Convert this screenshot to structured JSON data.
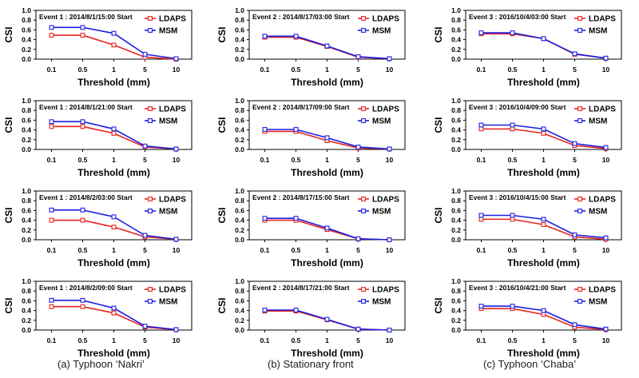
{
  "colors": {
    "ldaps": "#e8231d",
    "msm": "#1c1ee0",
    "axis": "#000000"
  },
  "legend_labels": {
    "ldaps": "LDAPS",
    "msm": "MSM"
  },
  "captions": [
    "(a) Typhoon ‘Nakri’",
    "(b) Stationary front",
    "(c) Typhoon ‘Chaba’"
  ],
  "chart_data": [
    {
      "type": "line",
      "title": "Event 1 : 2014/8/1/15:00  Start",
      "xlabel": "Threshold (mm)",
      "ylabel": "CSI",
      "categories": [
        "0.1",
        "0.5",
        "1",
        "5",
        "10"
      ],
      "yticks": [
        "0.0",
        "0.2",
        "0.4",
        "0.6",
        "0.8",
        "1.0"
      ],
      "ylim": [
        0,
        1
      ],
      "series": [
        {
          "name": "LDAPS",
          "values": [
            0.49,
            0.49,
            0.29,
            0.04,
            0.0
          ]
        },
        {
          "name": "MSM",
          "values": [
            0.65,
            0.65,
            0.53,
            0.1,
            0.01
          ]
        }
      ]
    },
    {
      "type": "line",
      "title": "Event 2 : 2014/8/17/03:00  Start",
      "xlabel": "Threshold (mm)",
      "ylabel": "CSI",
      "categories": [
        "0.1",
        "0.5",
        "1",
        "5",
        "10"
      ],
      "yticks": [
        "0.0",
        "0.2",
        "0.4",
        "0.6",
        "0.8",
        "1.0"
      ],
      "ylim": [
        0,
        1
      ],
      "series": [
        {
          "name": "LDAPS",
          "values": [
            0.45,
            0.45,
            0.26,
            0.04,
            0.01
          ]
        },
        {
          "name": "MSM",
          "values": [
            0.47,
            0.47,
            0.27,
            0.05,
            0.01
          ]
        }
      ]
    },
    {
      "type": "line",
      "title": "Event 3 : 2016/10/4/03:00  Start",
      "xlabel": "Threshold (mm)",
      "ylabel": "CSI",
      "categories": [
        "0.1",
        "0.5",
        "1",
        "5",
        "10"
      ],
      "yticks": [
        "0.0",
        "0.2",
        "0.4",
        "0.6",
        "0.8",
        "1.0"
      ],
      "ylim": [
        0,
        1
      ],
      "series": [
        {
          "name": "LDAPS",
          "values": [
            0.52,
            0.52,
            0.42,
            0.1,
            0.02
          ]
        },
        {
          "name": "MSM",
          "values": [
            0.54,
            0.54,
            0.42,
            0.11,
            0.02
          ]
        }
      ]
    },
    {
      "type": "line",
      "title": "Event 1 : 2014/8/1/21:00  Start",
      "xlabel": "Threshold (mm)",
      "ylabel": "CSI",
      "categories": [
        "0.1",
        "0.5",
        "1",
        "5",
        "10"
      ],
      "yticks": [
        "0.0",
        "0.2",
        "0.4",
        "0.6",
        "0.8",
        "1.0"
      ],
      "ylim": [
        0,
        1
      ],
      "series": [
        {
          "name": "LDAPS",
          "values": [
            0.47,
            0.47,
            0.33,
            0.05,
            0.01
          ]
        },
        {
          "name": "MSM",
          "values": [
            0.57,
            0.57,
            0.42,
            0.07,
            0.01
          ]
        }
      ]
    },
    {
      "type": "line",
      "title": "Event 2 : 2014/8/17/09:00  Start",
      "xlabel": "Threshold (mm)",
      "ylabel": "CSI",
      "categories": [
        "0.1",
        "0.5",
        "1",
        "5",
        "10"
      ],
      "yticks": [
        "0.0",
        "0.2",
        "0.4",
        "0.6",
        "0.8",
        "1.0"
      ],
      "ylim": [
        0,
        1
      ],
      "series": [
        {
          "name": "LDAPS",
          "values": [
            0.37,
            0.37,
            0.18,
            0.03,
            0.01
          ]
        },
        {
          "name": "MSM",
          "values": [
            0.41,
            0.41,
            0.24,
            0.05,
            0.01
          ]
        }
      ]
    },
    {
      "type": "line",
      "title": "Event 3 : 2016/10/4/09:00  Start",
      "xlabel": "Threshold (mm)",
      "ylabel": "CSI",
      "categories": [
        "0.1",
        "0.5",
        "1",
        "5",
        "10"
      ],
      "yticks": [
        "0.0",
        "0.2",
        "0.4",
        "0.6",
        "0.8",
        "1.0"
      ],
      "ylim": [
        0,
        1
      ],
      "series": [
        {
          "name": "LDAPS",
          "values": [
            0.42,
            0.42,
            0.33,
            0.08,
            0.02
          ]
        },
        {
          "name": "MSM",
          "values": [
            0.5,
            0.5,
            0.42,
            0.12,
            0.04
          ]
        }
      ]
    },
    {
      "type": "line",
      "title": "Event 1 : 2014/8/2/03:00  Start",
      "xlabel": "Threshold (mm)",
      "ylabel": "CSI",
      "categories": [
        "0.1",
        "0.5",
        "1",
        "5",
        "10"
      ],
      "yticks": [
        "0.0",
        "0.2",
        "0.4",
        "0.6",
        "0.8",
        "1.0"
      ],
      "ylim": [
        0,
        1
      ],
      "series": [
        {
          "name": "LDAPS",
          "values": [
            0.4,
            0.4,
            0.26,
            0.06,
            0.01
          ]
        },
        {
          "name": "MSM",
          "values": [
            0.61,
            0.61,
            0.47,
            0.09,
            0.01
          ]
        }
      ]
    },
    {
      "type": "line",
      "title": "Event 2 : 2014/8/17/15:00  Start",
      "xlabel": "Threshold (mm)",
      "ylabel": "CSI",
      "categories": [
        "0.1",
        "0.5",
        "1",
        "5",
        "10"
      ],
      "yticks": [
        "0.0",
        "0.2",
        "0.4",
        "0.6",
        "0.8",
        "1.0"
      ],
      "ylim": [
        0,
        1
      ],
      "series": [
        {
          "name": "LDAPS",
          "values": [
            0.4,
            0.4,
            0.21,
            0.02,
            0.0
          ]
        },
        {
          "name": "MSM",
          "values": [
            0.44,
            0.44,
            0.24,
            0.02,
            0.0
          ]
        }
      ]
    },
    {
      "type": "line",
      "title": "Event 3 : 2016/10/4/15:00  Start",
      "xlabel": "Threshold (mm)",
      "ylabel": "CSI",
      "categories": [
        "0.1",
        "0.5",
        "1",
        "5",
        "10"
      ],
      "yticks": [
        "0.0",
        "0.2",
        "0.4",
        "0.6",
        "0.8",
        "1.0"
      ],
      "ylim": [
        0,
        1
      ],
      "series": [
        {
          "name": "LDAPS",
          "values": [
            0.42,
            0.42,
            0.31,
            0.06,
            0.01
          ]
        },
        {
          "name": "MSM",
          "values": [
            0.5,
            0.5,
            0.42,
            0.1,
            0.04
          ]
        }
      ]
    },
    {
      "type": "line",
      "title": "Event 1 : 2014/8/2/09:00  Start",
      "xlabel": "Threshold (mm)",
      "ylabel": "CSI",
      "categories": [
        "0.1",
        "0.5",
        "1",
        "5",
        "10"
      ],
      "yticks": [
        "0.0",
        "0.2",
        "0.4",
        "0.6",
        "0.8",
        "1.0"
      ],
      "ylim": [
        0,
        1
      ],
      "series": [
        {
          "name": "LDAPS",
          "values": [
            0.48,
            0.48,
            0.35,
            0.06,
            0.01
          ]
        },
        {
          "name": "MSM",
          "values": [
            0.61,
            0.61,
            0.45,
            0.08,
            0.01
          ]
        }
      ]
    },
    {
      "type": "line",
      "title": "Event 2 : 2014/8/17/21:00  Start",
      "xlabel": "Threshold (mm)",
      "ylabel": "CSI",
      "categories": [
        "0.1",
        "0.5",
        "1",
        "5",
        "10"
      ],
      "yticks": [
        "0.0",
        "0.2",
        "0.4",
        "0.6",
        "0.8",
        "1.0"
      ],
      "ylim": [
        0,
        1
      ],
      "series": [
        {
          "name": "LDAPS",
          "values": [
            0.39,
            0.39,
            0.21,
            0.02,
            0.0
          ]
        },
        {
          "name": "MSM",
          "values": [
            0.41,
            0.41,
            0.22,
            0.02,
            0.0
          ]
        }
      ]
    },
    {
      "type": "line",
      "title": "Event 3 : 2016/10/4/21:00  Start",
      "xlabel": "Threshold (mm)",
      "ylabel": "CSI",
      "categories": [
        "0.1",
        "0.5",
        "1",
        "5",
        "10"
      ],
      "yticks": [
        "0.0",
        "0.2",
        "0.4",
        "0.6",
        "0.8",
        "1.0"
      ],
      "ylim": [
        0,
        1
      ],
      "series": [
        {
          "name": "LDAPS",
          "values": [
            0.44,
            0.44,
            0.32,
            0.06,
            0.01
          ]
        },
        {
          "name": "MSM",
          "values": [
            0.49,
            0.49,
            0.4,
            0.11,
            0.02
          ]
        }
      ]
    }
  ]
}
